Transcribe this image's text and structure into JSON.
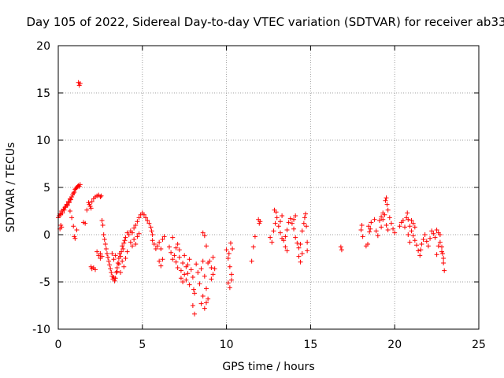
{
  "chart_data": {
    "type": "scatter",
    "title": "Day 105 of 2022, Sidereal Day-to-day VTEC variation (SDTVAR) for receiver ab33",
    "xlabel": "GPS time / hours",
    "ylabel": "SDTVAR / TECUs",
    "xlim": [
      0,
      25
    ],
    "ylim": [
      -10,
      20
    ],
    "xticks": [
      0,
      5,
      10,
      15,
      20,
      25
    ],
    "yticks": [
      -10,
      -5,
      0,
      5,
      10,
      15,
      20
    ],
    "xtick_labels": [
      "0",
      "5",
      "10",
      "15",
      "20",
      "25"
    ],
    "ytick_labels": [
      "-10",
      "-5",
      "0",
      "5",
      "10",
      "15",
      "20"
    ],
    "grid": true,
    "marker": "+",
    "color": "#ff0000",
    "series": [
      {
        "name": "SDTVAR",
        "points": [
          [
            0.0,
            1.8
          ],
          [
            0.05,
            2.0
          ],
          [
            0.1,
            2.2
          ],
          [
            0.15,
            2.1
          ],
          [
            0.2,
            2.5
          ],
          [
            0.25,
            2.3
          ],
          [
            0.3,
            2.7
          ],
          [
            0.35,
            2.6
          ],
          [
            0.4,
            2.9
          ],
          [
            0.45,
            3.0
          ],
          [
            0.5,
            3.2
          ],
          [
            0.55,
            3.1
          ],
          [
            0.6,
            3.5
          ],
          [
            0.65,
            3.4
          ],
          [
            0.7,
            3.8
          ],
          [
            0.75,
            3.7
          ],
          [
            0.8,
            4.0
          ],
          [
            0.85,
            4.2
          ],
          [
            0.9,
            4.4
          ],
          [
            0.95,
            4.5
          ],
          [
            1.0,
            4.8
          ],
          [
            1.05,
            4.9
          ],
          [
            1.1,
            5.0
          ],
          [
            1.15,
            5.1
          ],
          [
            1.2,
            5.2
          ],
          [
            1.25,
            5.1
          ],
          [
            1.3,
            5.3
          ],
          [
            0.1,
            0.6
          ],
          [
            0.15,
            1.0
          ],
          [
            0.2,
            0.8
          ],
          [
            0.7,
            2.5
          ],
          [
            0.8,
            1.8
          ],
          [
            0.9,
            0.9
          ],
          [
            0.95,
            -0.2
          ],
          [
            1.0,
            -0.4
          ],
          [
            1.1,
            0.5
          ],
          [
            1.2,
            16.1
          ],
          [
            1.25,
            15.8
          ],
          [
            1.3,
            16.0
          ],
          [
            1.5,
            1.3
          ],
          [
            1.6,
            1.2
          ],
          [
            1.7,
            2.6
          ],
          [
            1.8,
            3.4
          ],
          [
            1.85,
            3.2
          ],
          [
            1.9,
            3.0
          ],
          [
            1.95,
            2.8
          ],
          [
            2.0,
            3.5
          ],
          [
            2.1,
            3.8
          ],
          [
            2.2,
            4.0
          ],
          [
            2.3,
            4.1
          ],
          [
            2.4,
            4.2
          ],
          [
            2.5,
            4.0
          ],
          [
            2.55,
            4.1
          ],
          [
            1.95,
            -3.4
          ],
          [
            2.0,
            -3.6
          ],
          [
            2.1,
            -3.5
          ],
          [
            2.2,
            -3.7
          ],
          [
            2.3,
            -1.8
          ],
          [
            2.4,
            -2.2
          ],
          [
            2.5,
            -2.0
          ],
          [
            2.6,
            -2.3
          ],
          [
            2.5,
            -2.5
          ],
          [
            2.6,
            1.5
          ],
          [
            2.65,
            1.0
          ],
          [
            2.7,
            0.0
          ],
          [
            2.75,
            -0.5
          ],
          [
            2.8,
            -1.0
          ],
          [
            2.85,
            -1.5
          ],
          [
            2.9,
            -2.0
          ],
          [
            2.95,
            -2.4
          ],
          [
            3.0,
            -2.8
          ],
          [
            3.05,
            -3.2
          ],
          [
            3.1,
            -3.6
          ],
          [
            3.15,
            -4.0
          ],
          [
            3.2,
            -4.4
          ],
          [
            3.25,
            -4.7
          ],
          [
            3.3,
            -4.5
          ],
          [
            3.35,
            -4.9
          ],
          [
            3.4,
            -4.6
          ],
          [
            3.45,
            -4.0
          ],
          [
            3.5,
            -3.5
          ],
          [
            3.55,
            -3.0
          ],
          [
            3.6,
            -2.5
          ],
          [
            3.65,
            -2.0
          ],
          [
            3.7,
            -2.3
          ],
          [
            3.75,
            -1.8
          ],
          [
            3.8,
            -1.2
          ],
          [
            3.85,
            -1.5
          ],
          [
            3.9,
            -0.9
          ],
          [
            3.95,
            -0.6
          ],
          [
            3.2,
            -2.0
          ],
          [
            3.3,
            -2.6
          ],
          [
            3.4,
            -2.2
          ],
          [
            3.5,
            -3.9
          ],
          [
            3.6,
            -3.1
          ],
          [
            3.7,
            -4.0
          ],
          [
            3.8,
            -2.8
          ],
          [
            3.9,
            -3.4
          ],
          [
            4.0,
            -2.5
          ],
          [
            4.1,
            -1.8
          ],
          [
            4.0,
            -0.3
          ],
          [
            4.1,
            0.2
          ],
          [
            4.2,
            0.0
          ],
          [
            4.3,
            0.4
          ],
          [
            4.4,
            0.2
          ],
          [
            4.5,
            0.7
          ],
          [
            4.6,
            1.0
          ],
          [
            4.7,
            1.4
          ],
          [
            4.8,
            1.8
          ],
          [
            4.9,
            2.1
          ],
          [
            5.0,
            2.3
          ],
          [
            5.1,
            2.1
          ],
          [
            5.2,
            1.8
          ],
          [
            5.3,
            1.5
          ],
          [
            5.4,
            1.2
          ],
          [
            5.5,
            0.8
          ],
          [
            5.55,
            0.4
          ],
          [
            5.6,
            0.0
          ],
          [
            4.3,
            -0.8
          ],
          [
            4.4,
            -1.2
          ],
          [
            4.5,
            -0.5
          ],
          [
            4.6,
            -1.0
          ],
          [
            4.7,
            -0.2
          ],
          [
            4.8,
            0.1
          ],
          [
            5.6,
            -0.6
          ],
          [
            5.7,
            -1.0
          ],
          [
            5.8,
            -1.5
          ],
          [
            5.9,
            -1.2
          ],
          [
            6.0,
            -0.8
          ],
          [
            6.1,
            -1.5
          ],
          [
            6.2,
            -0.5
          ],
          [
            6.3,
            -0.2
          ],
          [
            6.0,
            -2.8
          ],
          [
            6.1,
            -3.3
          ],
          [
            6.2,
            -2.6
          ],
          [
            6.6,
            -1.3
          ],
          [
            6.7,
            -1.9
          ],
          [
            6.8,
            -2.6
          ],
          [
            6.9,
            -2.2
          ],
          [
            7.0,
            -1.4
          ],
          [
            6.8,
            -0.3
          ],
          [
            7.0,
            -2.9
          ],
          [
            7.1,
            -3.5
          ],
          [
            7.2,
            -2.4
          ],
          [
            7.3,
            -3.8
          ],
          [
            7.4,
            -3.0
          ],
          [
            7.5,
            -2.2
          ],
          [
            7.6,
            -3.4
          ],
          [
            7.7,
            -4.1
          ],
          [
            7.8,
            -2.6
          ],
          [
            7.3,
            -4.6
          ],
          [
            7.4,
            -5.0
          ],
          [
            7.5,
            -4.2
          ],
          [
            7.6,
            -4.8
          ],
          [
            7.7,
            -3.2
          ],
          [
            7.8,
            -5.3
          ],
          [
            7.9,
            -3.7
          ],
          [
            8.0,
            -4.5
          ],
          [
            8.1,
            -6.2
          ],
          [
            8.0,
            -7.5
          ],
          [
            8.1,
            -8.4
          ],
          [
            8.05,
            -5.8
          ],
          [
            8.2,
            -3.1
          ],
          [
            8.3,
            -4.0
          ],
          [
            8.4,
            -5.2
          ],
          [
            8.5,
            -3.6
          ],
          [
            8.6,
            -2.8
          ],
          [
            8.7,
            -4.4
          ],
          [
            8.8,
            -5.7
          ],
          [
            8.9,
            -6.8
          ],
          [
            8.5,
            -7.3
          ],
          [
            8.6,
            -6.5
          ],
          [
            8.7,
            -7.8
          ],
          [
            8.8,
            -7.2
          ],
          [
            8.9,
            -3.0
          ],
          [
            8.6,
            0.2
          ],
          [
            8.7,
            -0.1
          ],
          [
            8.8,
            -1.2
          ],
          [
            7.1,
            -1.0
          ],
          [
            7.2,
            -1.6
          ],
          [
            9.0,
            -2.8
          ],
          [
            9.1,
            -3.5
          ],
          [
            9.2,
            -4.2
          ],
          [
            9.3,
            -3.6
          ],
          [
            9.1,
            -4.7
          ],
          [
            9.2,
            -2.4
          ],
          [
            10.0,
            -1.6
          ],
          [
            10.1,
            -2.5
          ],
          [
            10.2,
            -3.4
          ],
          [
            10.3,
            -4.2
          ],
          [
            10.1,
            -5.1
          ],
          [
            10.2,
            -5.6
          ],
          [
            10.3,
            -4.8
          ],
          [
            10.25,
            -0.9
          ],
          [
            10.35,
            -1.5
          ],
          [
            10.15,
            -2.0
          ],
          [
            11.5,
            -2.8
          ],
          [
            11.6,
            -1.3
          ],
          [
            11.7,
            -0.2
          ],
          [
            11.9,
            1.6
          ],
          [
            11.95,
            1.2
          ],
          [
            12.0,
            1.4
          ],
          [
            12.6,
            -0.3
          ],
          [
            12.7,
            -0.8
          ],
          [
            12.8,
            0.4
          ],
          [
            12.9,
            1.2
          ],
          [
            12.85,
            2.6
          ],
          [
            12.95,
            2.4
          ],
          [
            13.0,
            1.8
          ],
          [
            13.1,
            0.9
          ],
          [
            13.2,
            0.2
          ],
          [
            13.3,
            -0.4
          ],
          [
            13.4,
            -0.6
          ],
          [
            13.5,
            -0.2
          ],
          [
            13.6,
            0.5
          ],
          [
            13.7,
            1.3
          ],
          [
            13.8,
            1.7
          ],
          [
            13.9,
            1.2
          ],
          [
            14.0,
            0.6
          ],
          [
            14.1,
            -0.3
          ],
          [
            14.2,
            -0.9
          ],
          [
            14.3,
            -1.4
          ],
          [
            14.4,
            -1.0
          ],
          [
            14.5,
            0.4
          ],
          [
            14.6,
            1.2
          ],
          [
            14.7,
            2.2
          ],
          [
            14.65,
            1.8
          ],
          [
            14.75,
            0.9
          ],
          [
            14.8,
            -0.8
          ],
          [
            14.8,
            -1.7
          ],
          [
            14.3,
            -2.3
          ],
          [
            14.4,
            -2.9
          ],
          [
            14.5,
            -2.0
          ],
          [
            13.5,
            -1.3
          ],
          [
            13.6,
            -1.7
          ],
          [
            14.0,
            1.6
          ],
          [
            14.1,
            2.0
          ],
          [
            13.2,
            1.4
          ],
          [
            13.3,
            2.0
          ],
          [
            16.8,
            -1.3
          ],
          [
            16.85,
            -1.6
          ],
          [
            18.0,
            0.5
          ],
          [
            18.05,
            1.0
          ],
          [
            18.1,
            -0.2
          ],
          [
            18.4,
            -1.0
          ],
          [
            18.45,
            0.9
          ],
          [
            18.5,
            0.3
          ],
          [
            18.55,
            0.6
          ],
          [
            18.6,
            1.3
          ],
          [
            18.3,
            -1.2
          ],
          [
            18.8,
            1.6
          ],
          [
            18.9,
            0.4
          ],
          [
            19.0,
            -0.1
          ],
          [
            19.1,
            1.5
          ],
          [
            19.2,
            1.9
          ],
          [
            19.3,
            2.3
          ],
          [
            19.4,
            2.1
          ],
          [
            19.45,
            3.6
          ],
          [
            19.5,
            3.9
          ],
          [
            19.55,
            3.2
          ],
          [
            19.6,
            2.6
          ],
          [
            19.7,
            1.8
          ],
          [
            19.8,
            1.2
          ],
          [
            19.9,
            0.6
          ],
          [
            20.0,
            0.2
          ],
          [
            19.5,
            1.0
          ],
          [
            19.6,
            0.5
          ],
          [
            19.2,
            0.8
          ],
          [
            19.3,
            1.6
          ],
          [
            20.3,
            0.9
          ],
          [
            20.4,
            1.3
          ],
          [
            20.5,
            1.5
          ],
          [
            20.6,
            0.8
          ],
          [
            20.7,
            1.8
          ],
          [
            20.75,
            2.3
          ],
          [
            20.8,
            1.6
          ],
          [
            20.9,
            0.9
          ],
          [
            21.0,
            0.4
          ],
          [
            21.1,
            -0.1
          ],
          [
            21.2,
            -0.6
          ],
          [
            21.3,
            -1.1
          ],
          [
            21.4,
            -1.7
          ],
          [
            21.5,
            -2.2
          ],
          [
            21.55,
            -1.6
          ],
          [
            21.6,
            -1.0
          ],
          [
            21.7,
            -0.5
          ],
          [
            21.8,
            0.0
          ],
          [
            21.9,
            -0.7
          ],
          [
            22.0,
            -1.2
          ],
          [
            22.1,
            -0.4
          ],
          [
            22.2,
            0.4
          ],
          [
            22.3,
            0.1
          ],
          [
            22.4,
            -0.3
          ],
          [
            22.5,
            0.5
          ],
          [
            22.6,
            0.2
          ],
          [
            22.7,
            -0.8
          ],
          [
            22.8,
            -1.3
          ],
          [
            22.85,
            -2.0
          ],
          [
            22.9,
            -3.0
          ],
          [
            22.95,
            -3.8
          ],
          [
            22.9,
            -2.5
          ],
          [
            22.8,
            -1.8
          ],
          [
            22.7,
            0.0
          ],
          [
            22.6,
            -1.2
          ],
          [
            22.5,
            -2.1
          ],
          [
            21.0,
            1.5
          ],
          [
            21.1,
            1.2
          ],
          [
            20.8,
            0.0
          ],
          [
            20.9,
            -0.8
          ],
          [
            21.2,
            0.8
          ]
        ]
      }
    ]
  }
}
